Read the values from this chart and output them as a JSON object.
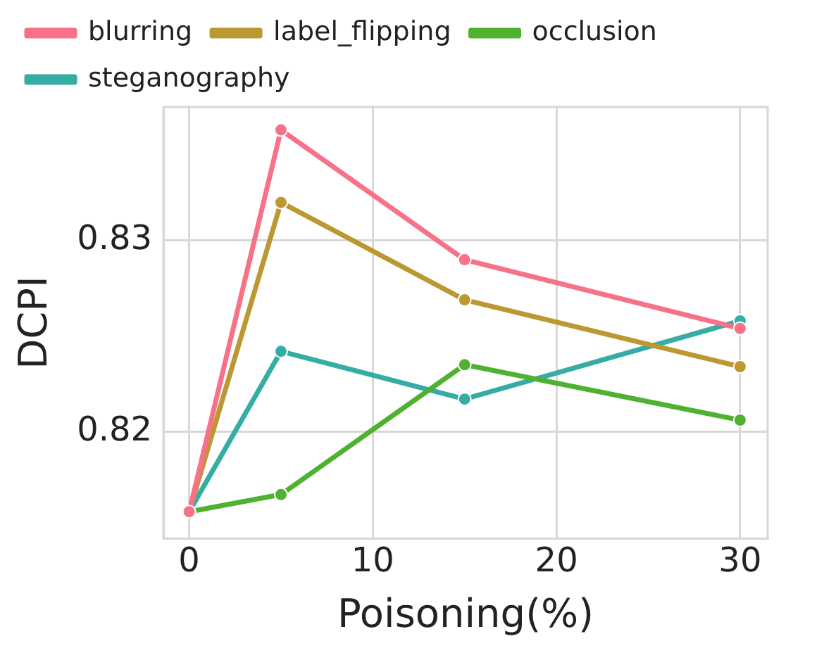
{
  "chart_data": {
    "type": "line",
    "xlabel": "Poisoning(%)",
    "ylabel": "DCPI",
    "x": [
      0,
      5,
      15,
      30
    ],
    "series": [
      {
        "name": "blurring",
        "color": "#f77189",
        "values": [
          0.8158,
          0.8358,
          0.829,
          0.8254
        ]
      },
      {
        "name": "label_flipping",
        "color": "#bb9832",
        "values": [
          0.8158,
          0.832,
          0.8269,
          0.8234
        ]
      },
      {
        "name": "occlusion",
        "color": "#50b131",
        "values": [
          0.8158,
          0.8167,
          0.8235,
          0.8206
        ]
      },
      {
        "name": "steganography",
        "color": "#36ada4",
        "values": [
          0.8158,
          0.8242,
          0.8217,
          0.8258
        ]
      }
    ],
    "xlim": [
      -1.4,
      31.5
    ],
    "ylim": [
      0.8144,
      0.837
    ],
    "xticks": [
      0,
      10,
      20,
      30
    ],
    "yticks": [
      0.82,
      0.83
    ],
    "grid": true,
    "legend": "top",
    "marker": "circle",
    "line_style": "solid"
  }
}
